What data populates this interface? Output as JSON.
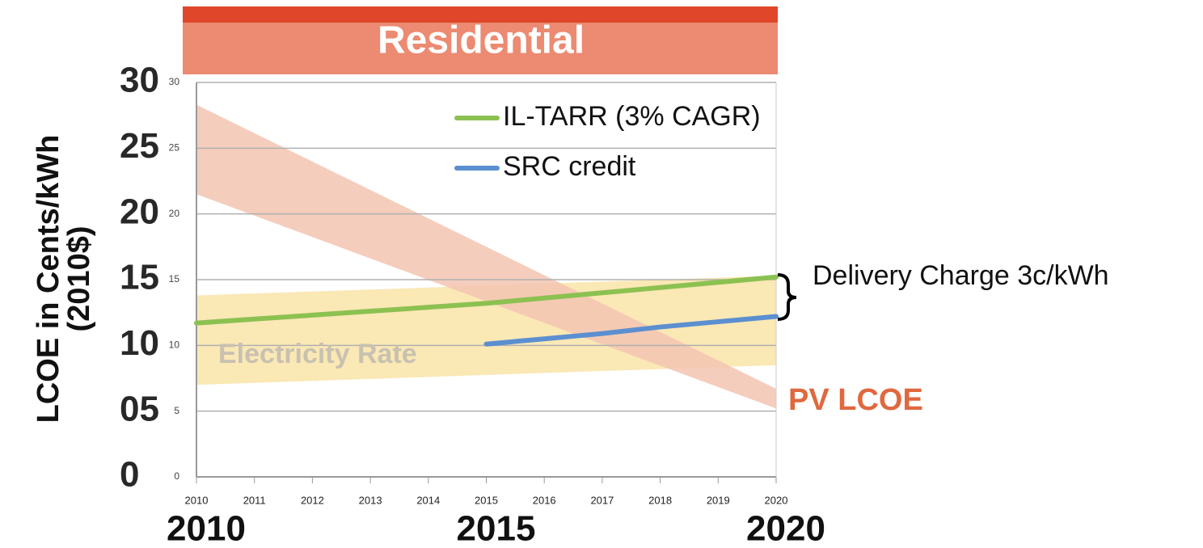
{
  "chart_data": {
    "type": "line",
    "title": "Residential",
    "y_label": [
      "LCOE in Cents/kWh",
      "(2010$)"
    ],
    "x": [
      2010,
      2011,
      2012,
      2013,
      2014,
      2015,
      2016,
      2017,
      2018,
      2019,
      2020
    ],
    "xlim": [
      2010,
      2020
    ],
    "xticks": [
      2010,
      2011,
      2012,
      2013,
      2014,
      2015,
      2016,
      2017,
      2018,
      2019,
      2020
    ],
    "big_xticks": [
      2010,
      2015,
      2020
    ],
    "ylim": [
      0,
      30
    ],
    "yticks": [
      0,
      5,
      10,
      15,
      20,
      25,
      30
    ],
    "big_yticks": [
      0,
      {
        "value": 5,
        "label": "05"
      },
      10,
      15,
      20,
      25,
      30
    ],
    "grid": true,
    "series": [
      {
        "name": "IL-TARR (3% CAGR)",
        "color": "#8cc152",
        "values": [
          11.7,
          12.0,
          12.3,
          12.6,
          12.9,
          13.2,
          13.6,
          14.0,
          14.4,
          14.8,
          15.2
        ]
      },
      {
        "name": "SRC credit",
        "color": "#5b8fd0",
        "values": [
          null,
          null,
          null,
          null,
          null,
          10.1,
          10.5,
          10.9,
          11.4,
          11.8,
          12.2
        ]
      }
    ],
    "bands": [
      {
        "name": "Electricity Rate",
        "color": "#f9e4a8",
        "x": [
          2010,
          2020
        ],
        "lower": [
          7.0,
          8.5
        ],
        "upper": [
          13.8,
          15.3
        ]
      },
      {
        "name": "PV LCOE",
        "color": "#f3c4b2",
        "x": [
          2010,
          2020
        ],
        "lower": [
          21.5,
          5.2
        ],
        "upper": [
          28.3,
          6.7
        ]
      }
    ],
    "annotation": "Delivery Charge 3c/kWh"
  }
}
